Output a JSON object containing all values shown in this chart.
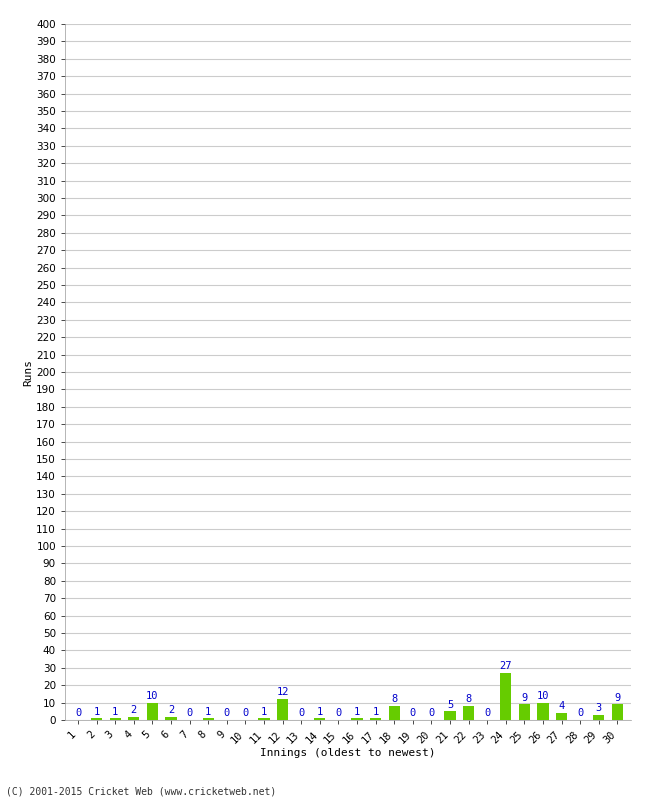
{
  "innings": [
    1,
    2,
    3,
    4,
    5,
    6,
    7,
    8,
    9,
    10,
    11,
    12,
    13,
    14,
    15,
    16,
    17,
    18,
    19,
    20,
    21,
    22,
    23,
    24,
    25,
    26,
    27,
    28,
    29,
    30
  ],
  "runs": [
    0,
    1,
    1,
    2,
    10,
    2,
    0,
    1,
    0,
    0,
    1,
    12,
    0,
    1,
    0,
    1,
    1,
    8,
    0,
    0,
    5,
    8,
    0,
    27,
    9,
    10,
    4,
    0,
    3,
    9
  ],
  "bar_color": "#66cc00",
  "label_color": "#0000cc",
  "background_color": "#ffffff",
  "grid_color": "#cccccc",
  "ylabel": "Runs",
  "xlabel": "Innings (oldest to newest)",
  "ytick_step": 10,
  "ymax": 400,
  "footer": "(C) 2001-2015 Cricket Web (www.cricketweb.net)",
  "tick_fontsize": 7.5,
  "label_fontsize": 8,
  "bar_label_fontsize": 7.5
}
